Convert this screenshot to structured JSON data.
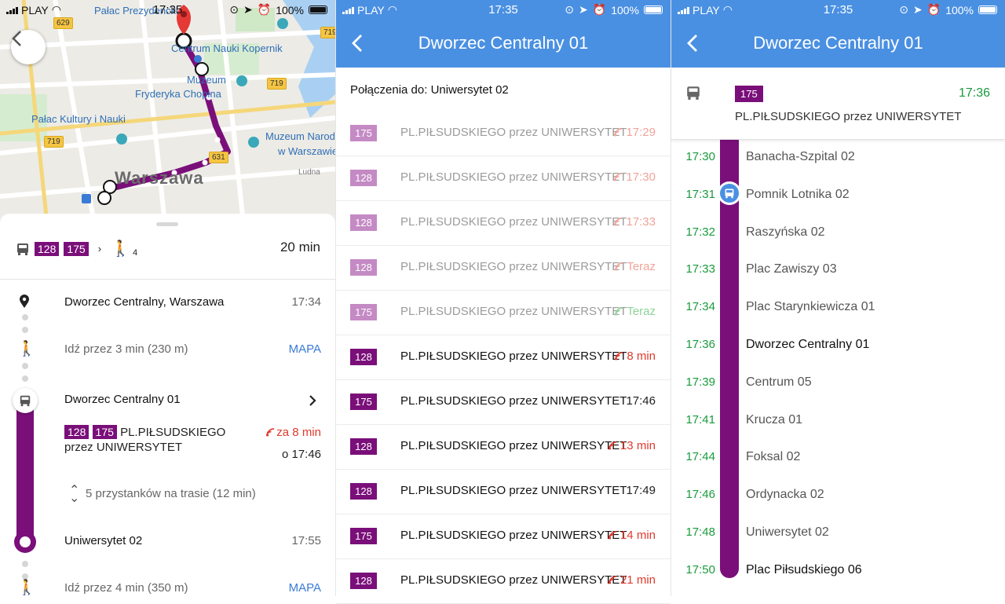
{
  "status": {
    "carrier": "PLAY",
    "time": "17:35",
    "battery": "100%"
  },
  "colors": {
    "line_purple": "#7a0f7a",
    "header_blue": "#4a90e2",
    "time_green": "#1a9a3d",
    "realtime_red": "#e03a2e"
  },
  "panel1": {
    "map": {
      "labels": {
        "palace_top": "Pałac Prezydencki",
        "kopernik": "Centrum Nauki Kopernik",
        "muzeum": "Muzeum",
        "chopin": "Fryderyka Chopina",
        "palac_kultury": "Pałac Kultury i Nauki",
        "muzeum_narodowe_1": "Muzeum Narodowe",
        "muzeum_narodowe_2": "w Warszawie",
        "warszawa": "Warszawa",
        "ludna": "Ludna"
      },
      "road_badges": [
        "629",
        "719",
        "719",
        "631",
        "719"
      ]
    },
    "summary": {
      "lines": [
        "128",
        "175"
      ],
      "walk_count": "4",
      "duration": "20 min"
    },
    "steps": {
      "origin_name": "Dworzec Centralny, Warszawa",
      "origin_time": "17:34",
      "walk1_text": "Idź przez 3 min (230 m)",
      "map_link": "MAPA",
      "board_stop": "Dworzec Centralny 01",
      "line1": "128",
      "line2": "175",
      "direction_1": "PL.PIŁSUDSKIEGO",
      "direction_2": "przez UNIWERSYTET",
      "realtime": "za 8 min",
      "departure": "o 17:46",
      "stops_info": "5 przystanków na trasie (12 min)",
      "alight_stop": "Uniwersytet 02",
      "alight_time": "17:55",
      "walk2_text": "Idź przez 4 min (350 m)",
      "map_link2": "MAPA"
    }
  },
  "panel2": {
    "title": "Dworzec Centralny 01",
    "connections_title": "Połączenia do: Uniwersytet 02",
    "departures": [
      {
        "line": "175",
        "dest": "PL.PIŁSUDSKIEGO przez UNIWERSYTET",
        "when": "17:29",
        "style": "faded",
        "rt": true
      },
      {
        "line": "128",
        "dest": "PL.PIŁSUDSKIEGO przez UNIWERSYTET",
        "when": "17:30",
        "style": "faded",
        "rt": true
      },
      {
        "line": "128",
        "dest": "PL.PIŁSUDSKIEGO przez UNIWERSYTET",
        "when": "17:33",
        "style": "faded",
        "rt": true
      },
      {
        "line": "128",
        "dest": "PL.PIŁSUDSKIEGO przez UNIWERSYTET",
        "when": "Teraz",
        "style": "faded",
        "rt": true
      },
      {
        "line": "175",
        "dest": "PL.PIŁSUDSKIEGO przez UNIWERSYTET",
        "when": "Teraz",
        "style": "faded green",
        "rt": true
      },
      {
        "line": "128",
        "dest": "PL.PIŁSUDSKIEGO przez UNIWERSYTET",
        "when": "8 min",
        "style": "solid red",
        "rt": true
      },
      {
        "line": "175",
        "dest": "PL.PIŁSUDSKIEGO przez UNIWERSYTET",
        "when": "17:46",
        "style": "solid plain",
        "rt": false
      },
      {
        "line": "128",
        "dest": "PL.PIŁSUDSKIEGO przez UNIWERSYTET",
        "when": "13 min",
        "style": "solid red",
        "rt": true
      },
      {
        "line": "128",
        "dest": "PL.PIŁSUDSKIEGO przez UNIWERSYTET",
        "when": "17:49",
        "style": "solid plain",
        "rt": false
      },
      {
        "line": "175",
        "dest": "PL.PIŁSUDSKIEGO przez UNIWERSYTET",
        "when": "14 min",
        "style": "solid red",
        "rt": true
      },
      {
        "line": "128",
        "dest": "PL.PIŁSUDSKIEGO przez UNIWERSYTET",
        "when": "21 min",
        "style": "solid red",
        "rt": true
      }
    ]
  },
  "panel3": {
    "title": "Dworzec Centralny 01",
    "trip": {
      "line": "175",
      "time": "17:36",
      "dest": "PL.PIŁSUDSKIEGO przez UNIWERSYTET"
    },
    "stops": [
      {
        "time": "17:30",
        "name": "Banacha-Szpital 02"
      },
      {
        "time": "17:31",
        "name": "Pomnik Lotnika 02"
      },
      {
        "time": "17:32",
        "name": "Raszyńska 02"
      },
      {
        "time": "17:33",
        "name": "Plac Zawiszy 03"
      },
      {
        "time": "17:34",
        "name": "Plac Starynkiewicza 01"
      },
      {
        "time": "17:36",
        "name": "Dworzec Centralny 01",
        "current": true
      },
      {
        "time": "17:39",
        "name": "Centrum 05"
      },
      {
        "time": "17:41",
        "name": "Krucza 01"
      },
      {
        "time": "17:44",
        "name": "Foksal 02"
      },
      {
        "time": "17:46",
        "name": "Ordynacka 02"
      },
      {
        "time": "17:48",
        "name": "Uniwersytet 02"
      },
      {
        "time": "17:50",
        "name": "Plac Piłsudskiego 06",
        "last": true
      }
    ]
  }
}
